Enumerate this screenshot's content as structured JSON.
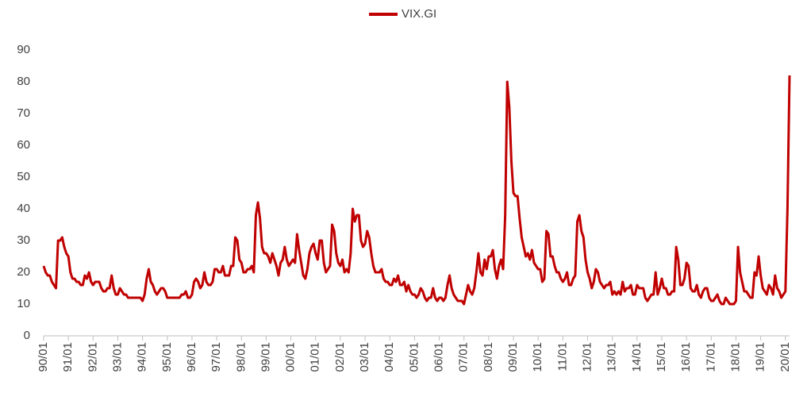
{
  "chart_data": {
    "type": "line",
    "series": [
      {
        "name": "VIX.GI",
        "color": "#c00000",
        "values": [
          22,
          20,
          19,
          19,
          17,
          16,
          15,
          30,
          30,
          31,
          28,
          26,
          25,
          20,
          18,
          18,
          17,
          17,
          16,
          16,
          19,
          18,
          20,
          17,
          16,
          17,
          17,
          17,
          15,
          14,
          14,
          15,
          15,
          19,
          15,
          13,
          13,
          15,
          14,
          13,
          13,
          12,
          12,
          12,
          12,
          12,
          12,
          12,
          11,
          13,
          18,
          21,
          17,
          16,
          14,
          13,
          14,
          15,
          15,
          14,
          12,
          12,
          12,
          12,
          12,
          12,
          12,
          13,
          13,
          14,
          12,
          12,
          13,
          17,
          18,
          17,
          15,
          16,
          20,
          17,
          16,
          16,
          17,
          21,
          21,
          20,
          20,
          22,
          19,
          19,
          19,
          22,
          22,
          31,
          30,
          24,
          23,
          20,
          20,
          21,
          21,
          22,
          20,
          38,
          42,
          37,
          28,
          26,
          26,
          25,
          23,
          26,
          24,
          22,
          19,
          23,
          24,
          28,
          24,
          22,
          23,
          24,
          23,
          32,
          27,
          23,
          19,
          18,
          21,
          26,
          28,
          29,
          26,
          24,
          30,
          30,
          23,
          20,
          21,
          22,
          35,
          33,
          26,
          23,
          22,
          24,
          20,
          21,
          20,
          26,
          40,
          36,
          38,
          38,
          30,
          28,
          29,
          33,
          31,
          26,
          22,
          20,
          20,
          20,
          21,
          18,
          17,
          17,
          16,
          16,
          18,
          17,
          19,
          16,
          16,
          17,
          14,
          16,
          14,
          13,
          13,
          12,
          13,
          15,
          14,
          12,
          11,
          12,
          12,
          15,
          12,
          11,
          12,
          12,
          11,
          12,
          16,
          19,
          15,
          13,
          12,
          11,
          11,
          11,
          10,
          13,
          16,
          14,
          13,
          15,
          20,
          26,
          20,
          19,
          24,
          21,
          25,
          25,
          27,
          21,
          18,
          22,
          24,
          21,
          38,
          80,
          72,
          55,
          45,
          44,
          44,
          37,
          31,
          28,
          25,
          26,
          24,
          27,
          23,
          22,
          21,
          21,
          17,
          18,
          33,
          32,
          25,
          25,
          22,
          20,
          20,
          18,
          17,
          18,
          20,
          16,
          16,
          18,
          19,
          36,
          38,
          33,
          31,
          24,
          20,
          18,
          15,
          17,
          21,
          20,
          17,
          16,
          15,
          16,
          16,
          17,
          13,
          14,
          13,
          14,
          13,
          17,
          14,
          15,
          15,
          16,
          13,
          13,
          16,
          15,
          15,
          15,
          12,
          11,
          12,
          13,
          13,
          20,
          13,
          15,
          18,
          15,
          15,
          13,
          13,
          14,
          14,
          28,
          24,
          16,
          16,
          18,
          23,
          22,
          15,
          14,
          14,
          16,
          13,
          12,
          14,
          15,
          15,
          12,
          11,
          11,
          12,
          13,
          11,
          10,
          10,
          12,
          11,
          10,
          10,
          10,
          11,
          28,
          20,
          17,
          14,
          14,
          13,
          12,
          12,
          20,
          19,
          25,
          19,
          15,
          14,
          13,
          16,
          15,
          13,
          19,
          15,
          14,
          12,
          13,
          14,
          40,
          82
        ]
      }
    ],
    "x": [
      "1990-01",
      "1990-02",
      "1990-03",
      "1990-04",
      "1990-05",
      "1990-06",
      "1990-07",
      "1990-08",
      "1990-09",
      "1990-10",
      "1990-11",
      "1990-12",
      "1991-01",
      "1991-02",
      "1991-03",
      "1991-04",
      "1991-05",
      "1991-06",
      "1991-07",
      "1991-08",
      "1991-09",
      "1991-10",
      "1991-11",
      "1991-12",
      "1992-01",
      "1992-02",
      "1992-03",
      "1992-04",
      "1992-05",
      "1992-06",
      "1992-07",
      "1992-08",
      "1992-09",
      "1992-10",
      "1992-11",
      "1992-12",
      "1993-01",
      "1993-02",
      "1993-03",
      "1993-04",
      "1993-05",
      "1993-06",
      "1993-07",
      "1993-08",
      "1993-09",
      "1993-10",
      "1993-11",
      "1993-12",
      "1994-01",
      "1994-02",
      "1994-03",
      "1994-04",
      "1994-05",
      "1994-06",
      "1994-07",
      "1994-08",
      "1994-09",
      "1994-10",
      "1994-11",
      "1994-12",
      "1995-01",
      "1995-02",
      "1995-03",
      "1995-04",
      "1995-05",
      "1995-06",
      "1995-07",
      "1995-08",
      "1995-09",
      "1995-10",
      "1995-11",
      "1995-12",
      "1996-01",
      "1996-02",
      "1996-03",
      "1996-04",
      "1996-05",
      "1996-06",
      "1996-07",
      "1996-08",
      "1996-09",
      "1996-10",
      "1996-11",
      "1996-12",
      "1997-01",
      "1997-02",
      "1997-03",
      "1997-04",
      "1997-05",
      "1997-06",
      "1997-07",
      "1997-08",
      "1997-09",
      "1997-10",
      "1997-11",
      "1997-12",
      "1998-01",
      "1998-02",
      "1998-03",
      "1998-04",
      "1998-05",
      "1998-06",
      "1998-07",
      "1998-08",
      "1998-09",
      "1998-10",
      "1998-11",
      "1998-12",
      "1999-01",
      "1999-02",
      "1999-03",
      "1999-04",
      "1999-05",
      "1999-06",
      "1999-07",
      "1999-08",
      "1999-09",
      "1999-10",
      "1999-11",
      "1999-12",
      "2000-01",
      "2000-02",
      "2000-03",
      "2000-04",
      "2000-05",
      "2000-06",
      "2000-07",
      "2000-08",
      "2000-09",
      "2000-10",
      "2000-11",
      "2000-12",
      "2001-01",
      "2001-02",
      "2001-03",
      "2001-04",
      "2001-05",
      "2001-06",
      "2001-07",
      "2001-08",
      "2001-09",
      "2001-10",
      "2001-11",
      "2001-12",
      "2002-01",
      "2002-02",
      "2002-03",
      "2002-04",
      "2002-05",
      "2002-06",
      "2002-07",
      "2002-08",
      "2002-09",
      "2002-10",
      "2002-11",
      "2002-12",
      "2003-01",
      "2003-02",
      "2003-03",
      "2003-04",
      "2003-05",
      "2003-06",
      "2003-07",
      "2003-08",
      "2003-09",
      "2003-10",
      "2003-11",
      "2003-12",
      "2004-01",
      "2004-02",
      "2004-03",
      "2004-04",
      "2004-05",
      "2004-06",
      "2004-07",
      "2004-08",
      "2004-09",
      "2004-10",
      "2004-11",
      "2004-12",
      "2005-01",
      "2005-02",
      "2005-03",
      "2005-04",
      "2005-05",
      "2005-06",
      "2005-07",
      "2005-08",
      "2005-09",
      "2005-10",
      "2005-11",
      "2005-12",
      "2006-01",
      "2006-02",
      "2006-03",
      "2006-04",
      "2006-05",
      "2006-06",
      "2006-07",
      "2006-08",
      "2006-09",
      "2006-10",
      "2006-11",
      "2006-12",
      "2007-01",
      "2007-02",
      "2007-03",
      "2007-04",
      "2007-05",
      "2007-06",
      "2007-07",
      "2007-08",
      "2007-09",
      "2007-10",
      "2007-11",
      "2007-12",
      "2008-01",
      "2008-02",
      "2008-03",
      "2008-04",
      "2008-05",
      "2008-06",
      "2008-07",
      "2008-08",
      "2008-09",
      "2008-10",
      "2008-11",
      "2008-12",
      "2009-01",
      "2009-02",
      "2009-03",
      "2009-04",
      "2009-05",
      "2009-06",
      "2009-07",
      "2009-08",
      "2009-09",
      "2009-10",
      "2009-11",
      "2009-12",
      "2010-01",
      "2010-02",
      "2010-03",
      "2010-04",
      "2010-05",
      "2010-06",
      "2010-07",
      "2010-08",
      "2010-09",
      "2010-10",
      "2010-11",
      "2010-12",
      "2011-01",
      "2011-02",
      "2011-03",
      "2011-04",
      "2011-05",
      "2011-06",
      "2011-07",
      "2011-08",
      "2011-09",
      "2011-10",
      "2011-11",
      "2011-12",
      "2012-01",
      "2012-02",
      "2012-03",
      "2012-04",
      "2012-05",
      "2012-06",
      "2012-07",
      "2012-08",
      "2012-09",
      "2012-10",
      "2012-11",
      "2012-12",
      "2013-01",
      "2013-02",
      "2013-03",
      "2013-04",
      "2013-05",
      "2013-06",
      "2013-07",
      "2013-08",
      "2013-09",
      "2013-10",
      "2013-11",
      "2013-12",
      "2014-01",
      "2014-02",
      "2014-03",
      "2014-04",
      "2014-05",
      "2014-06",
      "2014-07",
      "2014-08",
      "2014-09",
      "2014-10",
      "2014-11",
      "2014-12",
      "2015-01",
      "2015-02",
      "2015-03",
      "2015-04",
      "2015-05",
      "2015-06",
      "2015-07",
      "2015-08",
      "2015-09",
      "2015-10",
      "2015-11",
      "2015-12",
      "2016-01",
      "2016-02",
      "2016-03",
      "2016-04",
      "2016-05",
      "2016-06",
      "2016-07",
      "2016-08",
      "2016-09",
      "2016-10",
      "2016-11",
      "2016-12",
      "2017-01",
      "2017-02",
      "2017-03",
      "2017-04",
      "2017-05",
      "2017-06",
      "2017-07",
      "2017-08",
      "2017-09",
      "2017-10",
      "2017-11",
      "2017-12",
      "2018-01",
      "2018-02",
      "2018-03",
      "2018-04",
      "2018-05",
      "2018-06",
      "2018-07",
      "2018-08",
      "2018-09",
      "2018-10",
      "2018-11",
      "2018-12",
      "2019-01",
      "2019-02",
      "2019-03",
      "2019-04",
      "2019-05",
      "2019-06",
      "2019-07",
      "2019-08",
      "2019-09",
      "2019-10",
      "2019-11",
      "2019-12",
      "2020-01",
      "2020-02",
      "2020-03"
    ],
    "xticks": [
      {
        "value": "1990-01",
        "label": "90/01"
      },
      {
        "value": "1991-01",
        "label": "91/01"
      },
      {
        "value": "1992-01",
        "label": "92/01"
      },
      {
        "value": "1993-01",
        "label": "93/01"
      },
      {
        "value": "1994-01",
        "label": "94/01"
      },
      {
        "value": "1995-01",
        "label": "95/01"
      },
      {
        "value": "1996-01",
        "label": "96/01"
      },
      {
        "value": "1997-01",
        "label": "97/01"
      },
      {
        "value": "1998-01",
        "label": "98/01"
      },
      {
        "value": "1999-01",
        "label": "99/01"
      },
      {
        "value": "2000-01",
        "label": "00/01"
      },
      {
        "value": "2001-01",
        "label": "01/01"
      },
      {
        "value": "2002-01",
        "label": "02/01"
      },
      {
        "value": "2003-01",
        "label": "03/01"
      },
      {
        "value": "2004-01",
        "label": "04/01"
      },
      {
        "value": "2005-01",
        "label": "05/01"
      },
      {
        "value": "2006-01",
        "label": "06/01"
      },
      {
        "value": "2007-01",
        "label": "07/01"
      },
      {
        "value": "2008-01",
        "label": "08/01"
      },
      {
        "value": "2009-01",
        "label": "09/01"
      },
      {
        "value": "2010-01",
        "label": "10/01"
      },
      {
        "value": "2011-01",
        "label": "11/01"
      },
      {
        "value": "2012-01",
        "label": "12/01"
      },
      {
        "value": "2013-01",
        "label": "13/01"
      },
      {
        "value": "2014-01",
        "label": "14/01"
      },
      {
        "value": "2015-01",
        "label": "15/01"
      },
      {
        "value": "2016-01",
        "label": "16/01"
      },
      {
        "value": "2017-01",
        "label": "17/01"
      },
      {
        "value": "2018-01",
        "label": "18/01"
      },
      {
        "value": "2019-01",
        "label": "19/01"
      },
      {
        "value": "2020-01",
        "label": "20/01"
      }
    ],
    "xlim": [
      "1990-01",
      "2020-03"
    ],
    "ylim": [
      0,
      90
    ],
    "yticks": [
      0,
      10,
      20,
      30,
      40,
      50,
      60,
      70,
      80,
      90
    ],
    "grid": false,
    "legend": "top"
  }
}
